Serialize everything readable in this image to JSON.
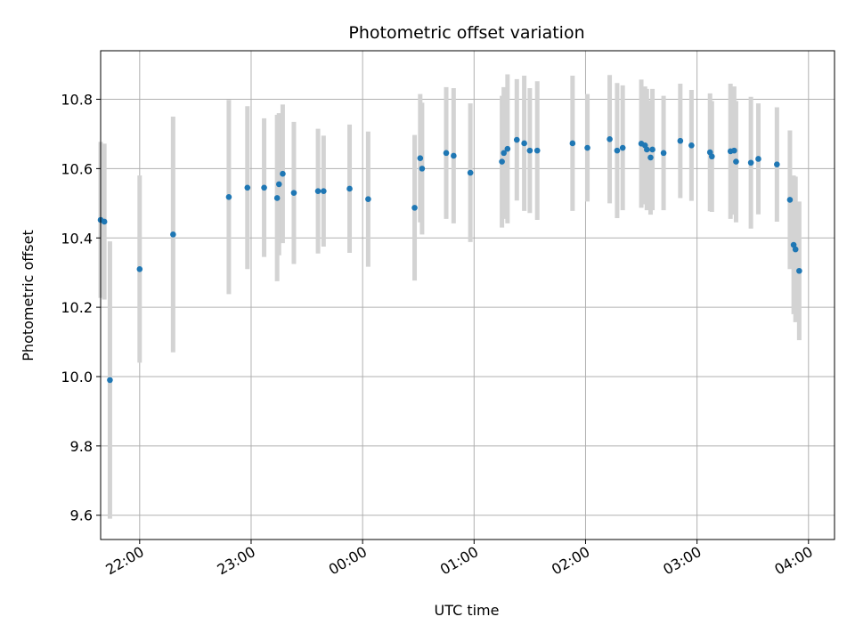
{
  "chart_data": {
    "type": "scatter",
    "title": "Photometric offset variation",
    "xlabel": "UTC time",
    "ylabel": "Photometric offset",
    "xlim": [
      "21:39",
      "04:14"
    ],
    "ylim": [
      9.53,
      10.94
    ],
    "x_ticks": [
      "22:00",
      "23:00",
      "00:00",
      "01:00",
      "02:00",
      "03:00",
      "04:00"
    ],
    "y_ticks": [
      9.6,
      9.8,
      10.0,
      10.2,
      10.4,
      10.6,
      10.8
    ],
    "grid": true,
    "colors": {
      "point": "#1f77b4",
      "errorbar": "#d3d3d3",
      "grid": "#b0b0b0"
    },
    "points": [
      {
        "t": "21:39",
        "y": 10.452,
        "e": 0.225
      },
      {
        "t": "21:41",
        "y": 10.447,
        "e": 0.225
      },
      {
        "t": "21:44",
        "y": 9.99,
        "e": 0.4
      },
      {
        "t": "22:00",
        "y": 10.31,
        "e": 0.27
      },
      {
        "t": "22:18",
        "y": 10.41,
        "e": 0.34
      },
      {
        "t": "22:48",
        "y": 10.518,
        "e": 0.28
      },
      {
        "t": "22:58",
        "y": 10.545,
        "e": 0.235
      },
      {
        "t": "23:07",
        "y": 10.545,
        "e": 0.2
      },
      {
        "t": "23:14",
        "y": 10.515,
        "e": 0.24
      },
      {
        "t": "23:15",
        "y": 10.555,
        "e": 0.205
      },
      {
        "t": "23:17",
        "y": 10.585,
        "e": 0.2
      },
      {
        "t": "23:23",
        "y": 10.53,
        "e": 0.205
      },
      {
        "t": "23:36",
        "y": 10.535,
        "e": 0.18
      },
      {
        "t": "23:39",
        "y": 10.535,
        "e": 0.16
      },
      {
        "t": "23:53",
        "y": 10.542,
        "e": 0.185
      },
      {
        "t": "00:03",
        "y": 10.512,
        "e": 0.195
      },
      {
        "t": "00:28",
        "y": 10.487,
        "e": 0.21
      },
      {
        "t": "00:31",
        "y": 10.63,
        "e": 0.185
      },
      {
        "t": "00:32",
        "y": 10.6,
        "e": 0.19
      },
      {
        "t": "00:45",
        "y": 10.645,
        "e": 0.19
      },
      {
        "t": "00:49",
        "y": 10.637,
        "e": 0.195
      },
      {
        "t": "00:58",
        "y": 10.588,
        "e": 0.2
      },
      {
        "t": "01:15",
        "y": 10.62,
        "e": 0.19
      },
      {
        "t": "01:16",
        "y": 10.645,
        "e": 0.19
      },
      {
        "t": "01:18",
        "y": 10.657,
        "e": 0.215
      },
      {
        "t": "01:23",
        "y": 10.683,
        "e": 0.175
      },
      {
        "t": "01:27",
        "y": 10.673,
        "e": 0.195
      },
      {
        "t": "01:30",
        "y": 10.652,
        "e": 0.18
      },
      {
        "t": "01:34",
        "y": 10.652,
        "e": 0.2
      },
      {
        "t": "01:53",
        "y": 10.673,
        "e": 0.195
      },
      {
        "t": "02:01",
        "y": 10.66,
        "e": 0.155
      },
      {
        "t": "02:13",
        "y": 10.685,
        "e": 0.185
      },
      {
        "t": "02:17",
        "y": 10.652,
        "e": 0.195
      },
      {
        "t": "02:20",
        "y": 10.66,
        "e": 0.18
      },
      {
        "t": "02:30",
        "y": 10.672,
        "e": 0.185
      },
      {
        "t": "02:32",
        "y": 10.667,
        "e": 0.17
      },
      {
        "t": "02:33",
        "y": 10.655,
        "e": 0.175
      },
      {
        "t": "02:35",
        "y": 10.632,
        "e": 0.165
      },
      {
        "t": "02:36",
        "y": 10.655,
        "e": 0.175
      },
      {
        "t": "02:42",
        "y": 10.645,
        "e": 0.165
      },
      {
        "t": "02:51",
        "y": 10.68,
        "e": 0.165
      },
      {
        "t": "02:57",
        "y": 10.667,
        "e": 0.16
      },
      {
        "t": "03:07",
        "y": 10.647,
        "e": 0.17
      },
      {
        "t": "03:08",
        "y": 10.635,
        "e": 0.16
      },
      {
        "t": "03:18",
        "y": 10.65,
        "e": 0.195
      },
      {
        "t": "03:20",
        "y": 10.652,
        "e": 0.185
      },
      {
        "t": "03:21",
        "y": 10.62,
        "e": 0.175
      },
      {
        "t": "03:29",
        "y": 10.617,
        "e": 0.19
      },
      {
        "t": "03:33",
        "y": 10.628,
        "e": 0.16
      },
      {
        "t": "03:43",
        "y": 10.612,
        "e": 0.165
      },
      {
        "t": "03:50",
        "y": 10.51,
        "e": 0.2
      },
      {
        "t": "03:52",
        "y": 10.38,
        "e": 0.2
      },
      {
        "t": "03:53",
        "y": 10.367,
        "e": 0.21
      },
      {
        "t": "03:55",
        "y": 10.305,
        "e": 0.2
      }
    ]
  }
}
